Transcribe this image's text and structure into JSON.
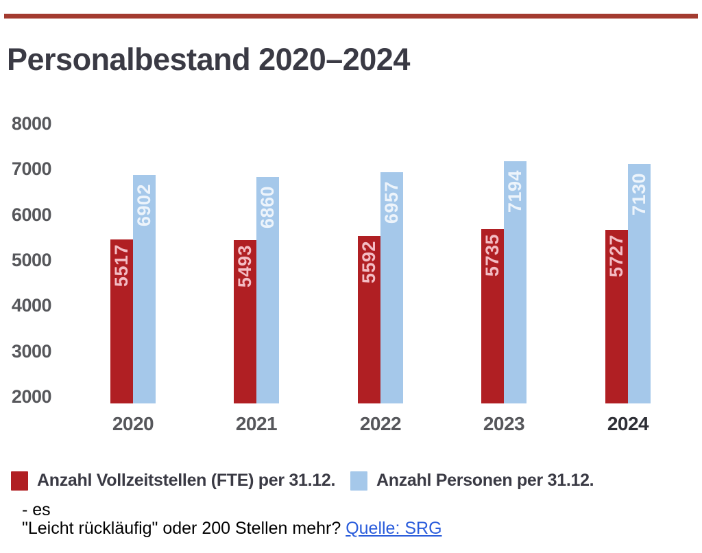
{
  "page": {
    "background": "#ffffff",
    "rule_color": "#a33b30"
  },
  "title": "Personalbestand 2020–2024",
  "chart_data": {
    "type": "bar",
    "title": "Personalbestand 2020–2024",
    "categories": [
      "2020",
      "2021",
      "2022",
      "2023",
      "2024"
    ],
    "series": [
      {
        "name": "Anzahl Vollzeitstellen (FTE) per 31.12.",
        "color": "#b01f23",
        "label_color": "#f3bdc4",
        "values": [
          5517,
          5493,
          5592,
          5735,
          5727
        ]
      },
      {
        "name": "Anzahl Personen per 31.12.",
        "color": "#a5c8ea",
        "label_color": "#edf4fb",
        "values": [
          6902,
          6860,
          6957,
          7194,
          7130
        ]
      }
    ],
    "y_ticks": [
      "8000",
      "7000",
      "6000",
      "5000",
      "4000",
      "3000",
      "2000"
    ],
    "ylim": [
      2000,
      8000
    ],
    "grid": false,
    "legend_position": "bottom",
    "value_labels": "rotated-90-inside-top",
    "highlight_category": "2024"
  },
  "footer": {
    "line1": "- es",
    "line2_prefix": "\"Leicht rückläufig\" oder 200 Stellen mehr? ",
    "link_text": "Quelle: SRG",
    "link_color": "#2a5cdb"
  }
}
